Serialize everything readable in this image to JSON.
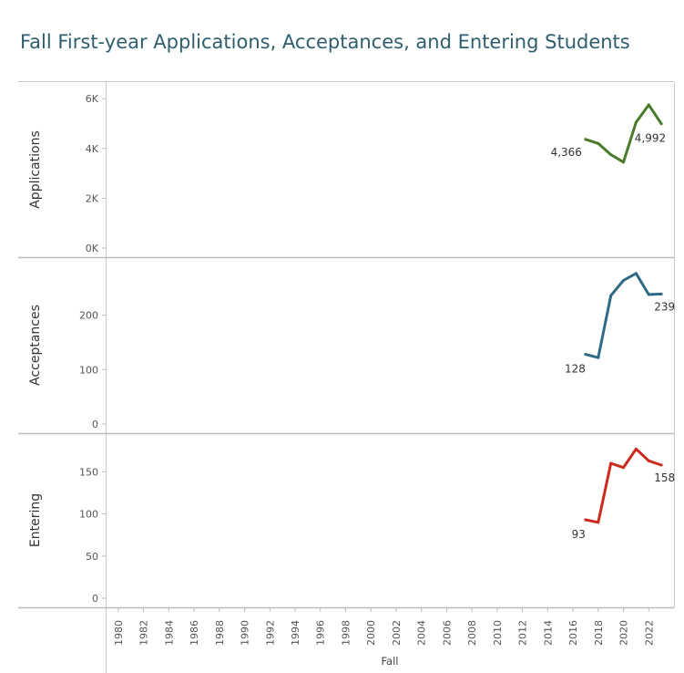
{
  "title": "Fall First-year Applications, Acceptances, and Entering Students",
  "chart_data": [
    {
      "type": "line",
      "ylabel": "Applications",
      "color": "#4a7a2b",
      "x": [
        2017,
        2018,
        2019,
        2020,
        2021,
        2022,
        2023
      ],
      "values": [
        4366,
        4200,
        3750,
        3450,
        5050,
        5750,
        4992
      ],
      "ylim": [
        0,
        6300
      ],
      "ticks": [
        0,
        2000,
        4000,
        6000
      ],
      "tick_labels": [
        "0K",
        "2K",
        "4K",
        "6K"
      ],
      "point_labels": [
        {
          "x": 2017,
          "text": "4,366"
        },
        {
          "x": 2023,
          "text": "4,992"
        }
      ]
    },
    {
      "type": "line",
      "ylabel": "Acceptances",
      "color": "#2f6b85",
      "x": [
        2017,
        2018,
        2019,
        2020,
        2021,
        2022,
        2023
      ],
      "values": [
        128,
        122,
        236,
        264,
        277,
        238,
        239
      ],
      "ylim": [
        0,
        290
      ],
      "ticks": [
        0,
        100,
        200
      ],
      "tick_labels": [
        "0",
        "100",
        "200"
      ],
      "point_labels": [
        {
          "x": 2017,
          "text": "128"
        },
        {
          "x": 2023,
          "text": "239"
        }
      ]
    },
    {
      "type": "line",
      "ylabel": "Entering",
      "color": "#cc2a1e",
      "x": [
        2017,
        2018,
        2019,
        2020,
        2021,
        2022,
        2023
      ],
      "values": [
        93,
        90,
        160,
        155,
        177,
        163,
        158
      ],
      "ylim": [
        0,
        185
      ],
      "ticks": [
        0,
        50,
        100,
        150
      ],
      "tick_labels": [
        "0",
        "50",
        "100",
        "150"
      ],
      "point_labels": [
        {
          "x": 2017,
          "text": "93"
        },
        {
          "x": 2023,
          "text": "158"
        }
      ]
    }
  ],
  "x_axis": {
    "title": "Fall",
    "range": [
      1979,
      2024
    ],
    "ticks": [
      1980,
      1982,
      1984,
      1986,
      1988,
      1990,
      1992,
      1994,
      1996,
      1998,
      2000,
      2002,
      2004,
      2006,
      2008,
      2010,
      2012,
      2014,
      2016,
      2018,
      2020,
      2022
    ]
  }
}
